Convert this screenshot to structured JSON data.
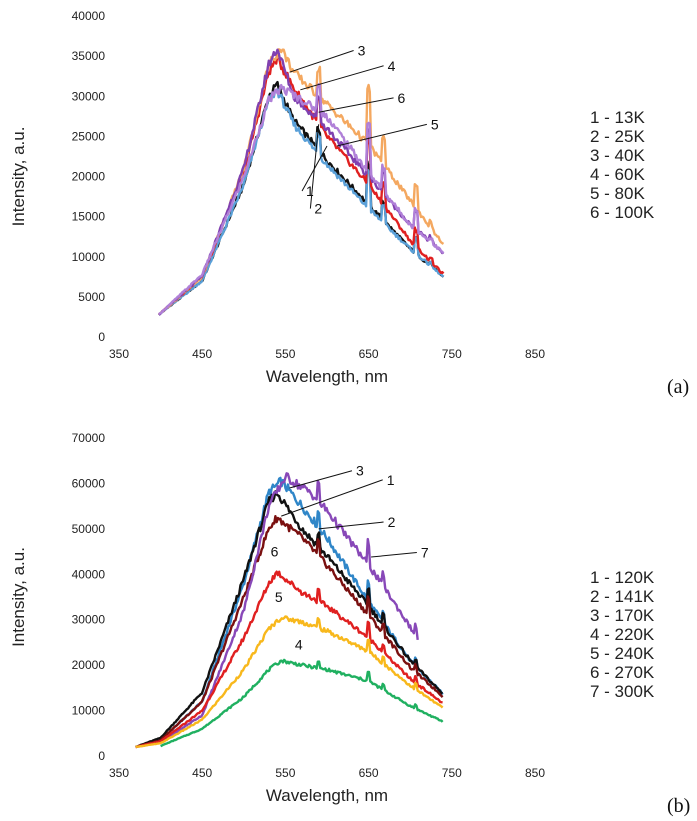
{
  "chart_data": [
    {
      "type": "line",
      "panel_label": "(a)",
      "xlabel": "Wavelength, nm",
      "ylabel": "Intensity, a.u.",
      "xlim": [
        350,
        850
      ],
      "ylim": [
        0,
        40000
      ],
      "xticks": [
        350,
        450,
        550,
        650,
        750,
        850
      ],
      "yticks": [
        0,
        5000,
        10000,
        15000,
        20000,
        25000,
        30000,
        35000,
        40000
      ],
      "grid": false,
      "legend_entries": [
        "1 - 13K",
        "2 - 25K",
        "3 - 40K",
        "4 - 60K",
        "5 - 80K",
        "6 - 100K"
      ],
      "series": [
        {
          "label": "1",
          "color": "#111111",
          "x": [
            398,
            450,
            500,
            530,
            540,
            560,
            600,
            650,
            700,
            740
          ],
          "y": [
            2800,
            7000,
            19000,
            30000,
            31500,
            27000,
            22000,
            16500,
            11000,
            7500
          ]
        },
        {
          "label": "2",
          "color": "#5aa0d8",
          "x": [
            398,
            450,
            500,
            530,
            540,
            560,
            600,
            650,
            700,
            740
          ],
          "y": [
            2800,
            7000,
            19000,
            29500,
            30800,
            26500,
            21500,
            16000,
            11000,
            7500
          ]
        },
        {
          "label": "3",
          "color": "#e02020",
          "x": [
            398,
            450,
            500,
            530,
            540,
            560,
            600,
            650,
            700,
            740
          ],
          "y": [
            2800,
            7500,
            20500,
            33000,
            34800,
            31000,
            25000,
            19000,
            12000,
            7800
          ]
        },
        {
          "label": "4",
          "color": "#f4a860",
          "x": [
            398,
            450,
            500,
            530,
            545,
            560,
            600,
            650,
            700,
            740
          ],
          "y": [
            2800,
            7500,
            21000,
            34000,
            36000,
            33000,
            29000,
            24000,
            17000,
            11500
          ]
        },
        {
          "label": "5",
          "color": "#8040b0",
          "x": [
            398,
            450,
            500,
            530,
            540,
            560,
            600,
            650,
            700,
            740
          ],
          "y": [
            2800,
            7600,
            21000,
            34000,
            36000,
            30000,
            26000,
            20000,
            14000,
            10500
          ]
        },
        {
          "label": "6",
          "color": "#b080d8",
          "x": [
            398,
            450,
            500,
            530,
            545,
            560,
            600,
            650,
            700,
            740
          ],
          "y": [
            2800,
            7800,
            20000,
            29500,
            31000,
            30200,
            27500,
            20500,
            14000,
            10500
          ]
        }
      ],
      "spikes": [
        {
          "x": 590,
          "rise": 2500
        },
        {
          "x": 650,
          "rise": 6500
        },
        {
          "x": 668,
          "rise": 3500
        },
        {
          "x": 707,
          "rise": 4000
        },
        {
          "x": 725,
          "rise": 1000
        }
      ],
      "callouts": [
        {
          "label": "3",
          "from": [
            555,
            33000
          ],
          "to": [
            632,
            35700
          ]
        },
        {
          "label": "4",
          "from": [
            568,
            30800
          ],
          "to": [
            668,
            33800
          ]
        },
        {
          "label": "6",
          "from": [
            590,
            28000
          ],
          "to": [
            680,
            29800
          ]
        },
        {
          "label": "5",
          "from": [
            612,
            23800
          ],
          "to": [
            720,
            26500
          ]
        },
        {
          "label": "1",
          "from": [
            600,
            23800
          ],
          "to": [
            570,
            18200
          ]
        },
        {
          "label": "2",
          "from": [
            590,
            26500
          ],
          "to": [
            580,
            16000
          ]
        }
      ]
    },
    {
      "type": "line",
      "panel_label": "(b)",
      "xlabel": "Wavelength, nm",
      "ylabel": "Intensity, a.u.",
      "xlim": [
        350,
        850
      ],
      "ylim": [
        0,
        70000
      ],
      "xticks": [
        350,
        450,
        550,
        650,
        750,
        850
      ],
      "yticks": [
        0,
        10000,
        20000,
        30000,
        40000,
        50000,
        60000,
        70000
      ],
      "grid": false,
      "legend_entries": [
        "1 - 120K",
        "2 - 141K",
        "3 - 170K",
        "4 - 220K",
        "5 - 240K",
        "6 - 270K",
        "7 - 300K"
      ],
      "series": [
        {
          "label": "2",
          "color": "#2f86c8",
          "x": [
            370,
            400,
            450,
            500,
            530,
            545,
            570,
            600,
            650,
            700,
            740
          ],
          "y": [
            2000,
            3500,
            12000,
            38000,
            58000,
            60500,
            55000,
            48000,
            34000,
            21000,
            13500
          ]
        },
        {
          "label": "1",
          "color": "#111111",
          "x": [
            370,
            400,
            450,
            500,
            530,
            540,
            570,
            600,
            650,
            700,
            740
          ],
          "y": [
            2000,
            4000,
            14000,
            39000,
            56000,
            58000,
            50000,
            44000,
            33000,
            21000,
            13500
          ]
        },
        {
          "label": "3",
          "color": "#7a1010",
          "x": [
            370,
            400,
            450,
            500,
            530,
            540,
            570,
            600,
            650,
            700,
            740
          ],
          "y": [
            2000,
            3500,
            12000,
            35000,
            50000,
            52500,
            48000,
            42000,
            31000,
            19500,
            13000
          ]
        },
        {
          "label": "7",
          "color": "#8848b8",
          "x": [
            370,
            400,
            450,
            500,
            530,
            550,
            580,
            600,
            650,
            680,
            710
          ],
          "y": [
            2000,
            3000,
            9000,
            32000,
            55000,
            61500,
            58000,
            54000,
            42000,
            34000,
            25500
          ]
        },
        {
          "label": "6",
          "color": "#e02020",
          "x": [
            370,
            400,
            450,
            500,
            530,
            540,
            570,
            600,
            650,
            700,
            740
          ],
          "y": [
            2000,
            3200,
            10000,
            26000,
            38000,
            40500,
            36000,
            33000,
            26000,
            17000,
            11500
          ]
        },
        {
          "label": "5",
          "color": "#f8b81c",
          "x": [
            370,
            400,
            450,
            500,
            530,
            545,
            570,
            600,
            650,
            700,
            740
          ],
          "y": [
            2000,
            2800,
            8000,
            19000,
            28000,
            30500,
            29500,
            27500,
            23000,
            15500,
            10500
          ]
        },
        {
          "label": "4",
          "color": "#20b060",
          "x": [
            400,
            450,
            500,
            530,
            545,
            570,
            600,
            650,
            700,
            740
          ],
          "y": [
            2200,
            6000,
            13000,
            19000,
            21000,
            20000,
            19000,
            16500,
            11000,
            7500
          ]
        }
      ],
      "spikes": [
        {
          "x": 590,
          "rise": 2500
        },
        {
          "x": 650,
          "rise": 4500
        },
        {
          "x": 668,
          "rise": 3000
        },
        {
          "x": 707,
          "rise": 3000
        }
      ],
      "callouts": [
        {
          "label": "3",
          "from": [
            555,
            59000
          ],
          "to": [
            630,
            62800
          ]
        },
        {
          "label": "1",
          "from": [
            545,
            52800
          ],
          "to": [
            667,
            60800
          ]
        },
        {
          "label": "2",
          "from": [
            590,
            50000
          ],
          "to": [
            668,
            51500
          ]
        },
        {
          "label": "7",
          "from": [
            653,
            43800
          ],
          "to": [
            708,
            44800
          ]
        }
      ],
      "inline_labels": [
        {
          "label": "6",
          "x": 537,
          "y": 45000
        },
        {
          "label": "5",
          "x": 542,
          "y": 35000
        },
        {
          "label": "4",
          "x": 566,
          "y": 24500
        }
      ]
    }
  ]
}
